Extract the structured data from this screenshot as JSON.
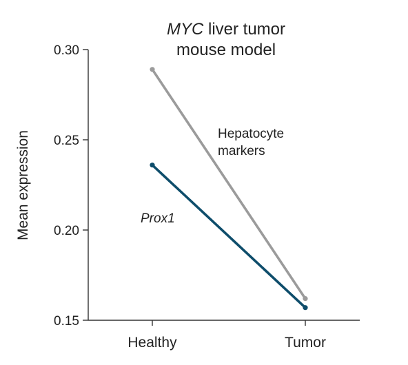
{
  "chart_data": {
    "type": "line",
    "title_italic": "MYC",
    "title_rest": " liver tumor",
    "title_line2": "mouse model",
    "xlabel": "",
    "ylabel": "Mean expression",
    "categories": [
      "Healthy",
      "Tumor"
    ],
    "ylim": [
      0.15,
      0.3
    ],
    "yticks": [
      {
        "value": 0.15,
        "label": "0.15"
      },
      {
        "value": 0.2,
        "label": "0.20"
      },
      {
        "value": 0.25,
        "label": "0.25"
      },
      {
        "value": 0.3,
        "label": "0.30"
      }
    ],
    "grid": false,
    "series": [
      {
        "name": "Hepatocyte markers",
        "label_lines": [
          "Hepatocyte",
          "markers"
        ],
        "italic": false,
        "color": "#9b9b9b",
        "values": [
          0.289,
          0.162
        ]
      },
      {
        "name": "Prox1",
        "label_lines": [
          "Prox1"
        ],
        "italic": true,
        "color": "#0e4d6b",
        "values": [
          0.236,
          0.157
        ]
      }
    ]
  }
}
